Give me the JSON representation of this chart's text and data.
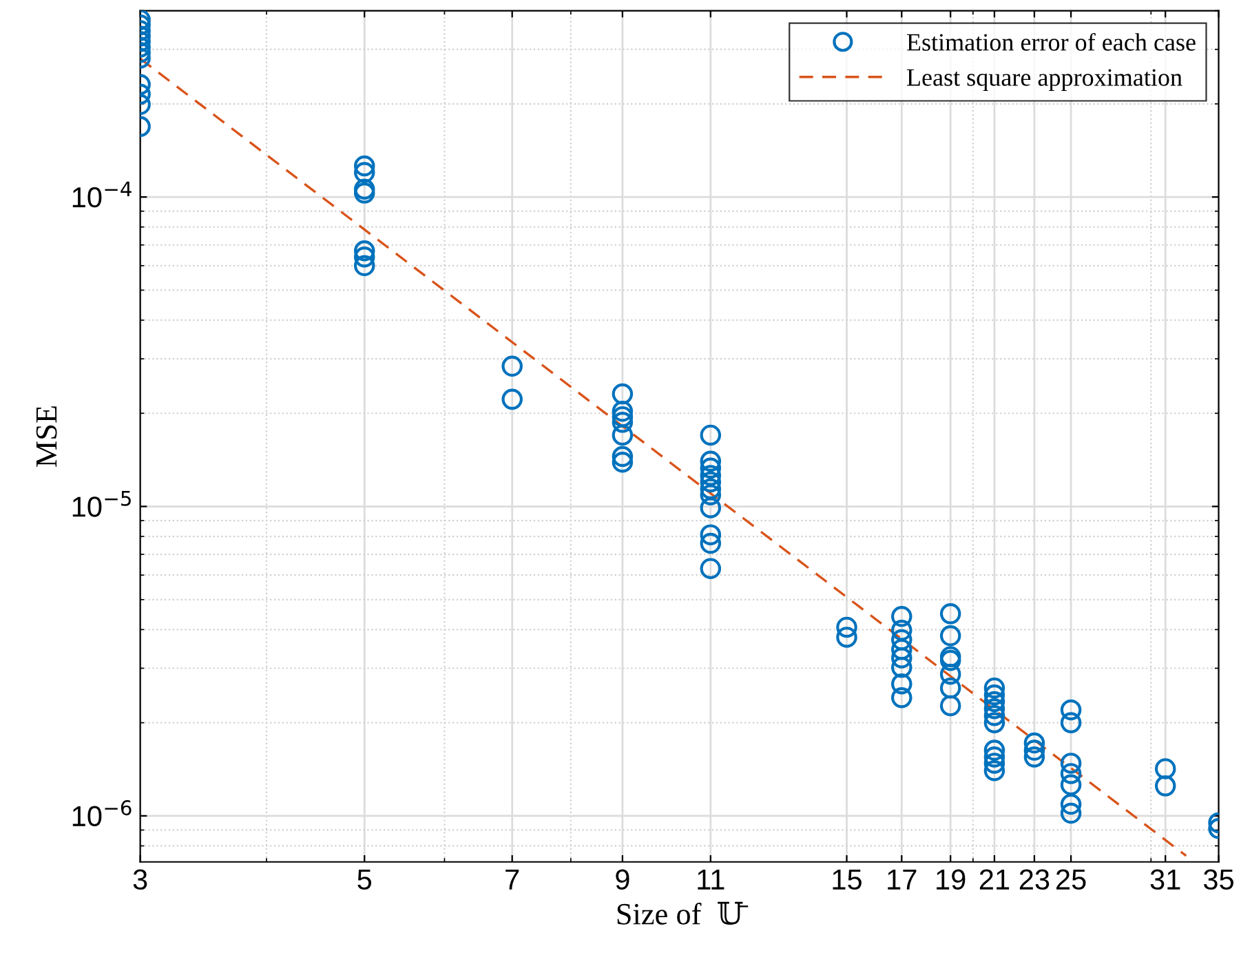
{
  "chart_data": {
    "type": "scatter",
    "xlabel": "Size of  𝕌̄",
    "ylabel": "MSE",
    "log": "xy",
    "grid": true,
    "legend": "top right",
    "marker": "circle",
    "xlim": [
      3,
      35
    ],
    "xticks": [
      3,
      5,
      7,
      9,
      11,
      15,
      17,
      19,
      21,
      23,
      25,
      31,
      35
    ],
    "ylim": [
      7.1e-07,
      0.0004
    ],
    "yticks": [
      {
        "value": 1e-06,
        "label": "10$^{−6}$"
      },
      {
        "value": 1e-05,
        "label": "10$^{−5}$"
      },
      {
        "value": 0.0001,
        "label": "10$^{−4}$"
      }
    ],
    "series": [
      {
        "name": "Estimation error of each case",
        "color": "#0072bd",
        "x": [
          3,
          3,
          3,
          3,
          3,
          3,
          3,
          3,
          3,
          3,
          3,
          3,
          5,
          5,
          5,
          5,
          5,
          5,
          5,
          7,
          7,
          9,
          9,
          9,
          9,
          9,
          9,
          9,
          11,
          11,
          11,
          11,
          11,
          11,
          11,
          11,
          11,
          11,
          11,
          15,
          15,
          17,
          17,
          17,
          17,
          17,
          17,
          17,
          17,
          19,
          19,
          19,
          19,
          19,
          19,
          19,
          21,
          21,
          21,
          21,
          21,
          21,
          21,
          21,
          21,
          21,
          23,
          23,
          23,
          25,
          25,
          25,
          25,
          25,
          25,
          25,
          31,
          31,
          35,
          35
        ],
        "values": [
          0.000374,
          0.00036,
          0.000345,
          0.000331,
          0.000318,
          0.000305,
          0.000293,
          0.000281,
          0.000231,
          0.000215,
          0.000199,
          0.000169,
          0.000126,
          0.00012,
          0.000106,
          0.000103,
          6.7e-05,
          6.4e-05,
          6e-05,
          2.84e-05,
          2.22e-05,
          2.31e-05,
          2.03e-05,
          1.95e-05,
          1.87e-05,
          1.7e-05,
          1.45e-05,
          1.39e-05,
          1.7e-05,
          1.4e-05,
          1.33e-05,
          1.26e-05,
          1.2e-05,
          1.14e-05,
          1.09e-05,
          9.9e-06,
          8.1e-06,
          7.6e-06,
          6.3e-06,
          4.07e-06,
          3.78e-06,
          4.41e-06,
          3.98e-06,
          3.71e-06,
          3.45e-06,
          3.24e-06,
          3.02e-06,
          2.67e-06,
          2.41e-06,
          4.5e-06,
          3.82e-06,
          3.27e-06,
          3.18e-06,
          2.87e-06,
          2.59e-06,
          2.27e-06,
          2.59e-06,
          2.46e-06,
          2.34e-06,
          2.22e-06,
          2.11e-06,
          2e-06,
          1.63e-06,
          1.55e-06,
          1.48e-06,
          1.4e-06,
          1.72e-06,
          1.63e-06,
          1.55e-06,
          2.2e-06,
          2e-06,
          1.48e-06,
          1.37e-06,
          1.26e-06,
          1.09e-06,
          1.02e-06,
          1.42e-06,
          1.25e-06,
          9.5e-07,
          9.1e-07
        ]
      },
      {
        "name": "Least square approximation",
        "type": "line",
        "line_style": "dashed",
        "marker": "none",
        "color": "#d95319",
        "x": [
          3,
          32.5
        ],
        "values": [
          0.00028,
          7.43e-07
        ]
      }
    ]
  }
}
